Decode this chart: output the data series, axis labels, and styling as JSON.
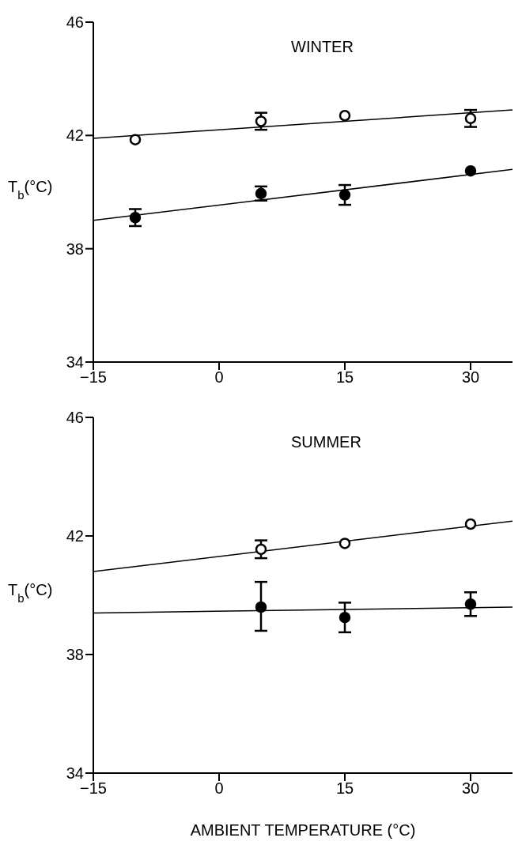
{
  "chart_data": [
    {
      "type": "scatter",
      "title": "WINTER",
      "ylabel": "T$_{b}$(°C)",
      "xlim": [
        -15,
        35
      ],
      "xticks": [
        -15,
        0,
        15,
        30
      ],
      "ylim": [
        34,
        46
      ],
      "yticks": [
        34,
        38,
        42,
        46
      ],
      "grid": false,
      "legend": false,
      "marker": "circle",
      "series": [
        {
          "color": "#ffffff",
          "x": [
            -10,
            5,
            15,
            30
          ],
          "values": [
            41.85,
            42.5,
            42.7,
            42.6
          ],
          "errors": [
            null,
            0.3,
            null,
            0.3
          ]
        },
        {
          "color": "#000000",
          "x": [
            -10,
            5,
            15,
            30
          ],
          "values": [
            39.1,
            39.95,
            39.9,
            40.75
          ],
          "errors": [
            0.3,
            0.25,
            0.35,
            null
          ]
        },
        {
          "type": "line",
          "color": "#000000",
          "marker": "none",
          "line_style": "solid",
          "x": [
            -15,
            35
          ],
          "values": [
            41.9,
            42.9
          ]
        },
        {
          "type": "line",
          "color": "#000000",
          "marker": "none",
          "line_style": "solid",
          "x": [
            -15,
            35
          ],
          "values": [
            39.0,
            40.8
          ]
        }
      ]
    },
    {
      "type": "scatter",
      "title": "SUMMER",
      "ylabel": "T$_{b}$(°C)",
      "xlabel": "AMBIENT TEMPERATURE (°C)",
      "xlim": [
        -15,
        35
      ],
      "xticks": [
        -15,
        0,
        15,
        30
      ],
      "ylim": [
        34,
        46
      ],
      "yticks": [
        34,
        38,
        42,
        46
      ],
      "grid": false,
      "legend": false,
      "marker": "circle",
      "series": [
        {
          "color": "#ffffff",
          "x": [
            5,
            15,
            30
          ],
          "values": [
            41.55,
            41.75,
            42.4
          ],
          "errors": [
            0.3,
            null,
            null
          ]
        },
        {
          "color": "#000000",
          "x": [
            5,
            15,
            30
          ],
          "values": [
            39.6,
            39.25,
            39.7
          ],
          "errors": [
            [
              38.8,
              40.45
            ],
            0.5,
            0.4
          ]
        },
        {
          "type": "line",
          "color": "#000000",
          "marker": "none",
          "line_style": "solid",
          "x": [
            -15,
            35
          ],
          "values": [
            40.8,
            42.5
          ]
        },
        {
          "type": "line",
          "color": "#000000",
          "marker": "none",
          "line_style": "solid",
          "x": [
            -15,
            35
          ],
          "values": [
            39.4,
            39.6
          ]
        }
      ]
    }
  ]
}
